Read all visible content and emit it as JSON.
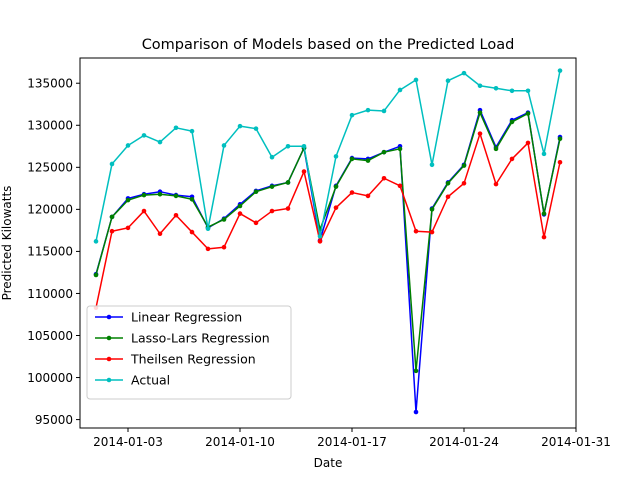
{
  "chart_data": {
    "type": "line",
    "title": "Comparison of Models based on the Predicted Load",
    "xlabel": "Date",
    "ylabel": "Predicted Kilowatts",
    "x": [
      "2014-01-01",
      "2014-01-02",
      "2014-01-03",
      "2014-01-04",
      "2014-01-05",
      "2014-01-06",
      "2014-01-07",
      "2014-01-08",
      "2014-01-09",
      "2014-01-10",
      "2014-01-11",
      "2014-01-12",
      "2014-01-13",
      "2014-01-14",
      "2014-01-15",
      "2014-01-16",
      "2014-01-17",
      "2014-01-18",
      "2014-01-19",
      "2014-01-20",
      "2014-01-21",
      "2014-01-22",
      "2014-01-23",
      "2014-01-24",
      "2014-01-25",
      "2014-01-26",
      "2014-01-27",
      "2014-01-28",
      "2014-01-29",
      "2014-01-30"
    ],
    "xlim": [
      "2013-12-31",
      "2014-01-31"
    ],
    "ylim": [
      94000,
      138000
    ],
    "x_ticks": [
      "2014-01-03",
      "2014-01-10",
      "2014-01-17",
      "2014-01-24",
      "2014-01-31"
    ],
    "y_ticks": [
      95000,
      100000,
      105000,
      110000,
      115000,
      120000,
      125000,
      130000,
      135000
    ],
    "legend_position": "lower-left",
    "grid": false,
    "series": [
      {
        "name": "Linear Regression",
        "color": "#0000ff",
        "values": [
          112300,
          119100,
          121300,
          121800,
          122100,
          121700,
          121500,
          117800,
          118900,
          120600,
          122200,
          122800,
          123200,
          127300,
          116300,
          122800,
          126100,
          126000,
          126800,
          127500,
          95900,
          120100,
          123200,
          125300,
          131800,
          127400,
          130600,
          131500,
          119400,
          128600
        ]
      },
      {
        "name": "Lasso-Lars Regression",
        "color": "#008000",
        "values": [
          112200,
          119100,
          121100,
          121700,
          121800,
          121600,
          121200,
          117900,
          118800,
          120400,
          122100,
          122700,
          123200,
          127300,
          117600,
          122700,
          126000,
          125800,
          126800,
          127200,
          100800,
          120000,
          123100,
          125200,
          131500,
          127200,
          130400,
          131400,
          119500,
          128400
        ]
      },
      {
        "name": "Theilsen Regression",
        "color": "#ff0000",
        "values": [
          108300,
          117400,
          117800,
          119800,
          117100,
          119300,
          117300,
          115300,
          115500,
          119500,
          118400,
          119800,
          120100,
          124500,
          116200,
          120200,
          122000,
          121600,
          123700,
          122800,
          117400,
          117300,
          121500,
          123100,
          129000,
          123000,
          126000,
          127900,
          116700,
          125600
        ]
      },
      {
        "name": "Actual",
        "color": "#00bfbf",
        "values": [
          116200,
          125400,
          127600,
          128800,
          128000,
          129700,
          129300,
          117700,
          127600,
          129900,
          129600,
          126200,
          127500,
          127500,
          116800,
          126300,
          131200,
          131800,
          131700,
          134200,
          135400,
          125300,
          135300,
          136200,
          134700,
          134400,
          134100,
          134100,
          126600,
          136500
        ]
      }
    ]
  }
}
